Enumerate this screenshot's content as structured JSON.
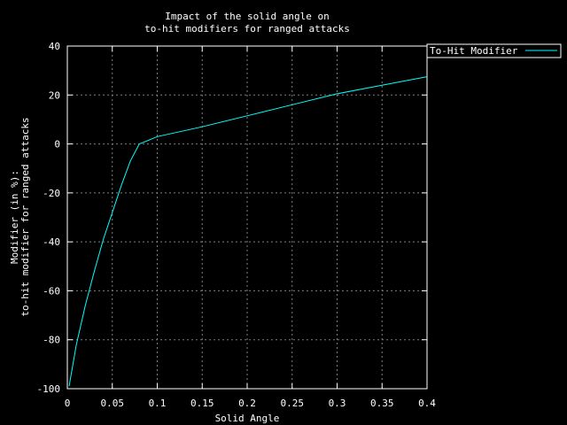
{
  "chart_data": {
    "type": "line",
    "title_lines": [
      "Impact of the solid angle on",
      "to-hit modifiers for ranged attacks"
    ],
    "xlabel": "Solid Angle",
    "ylabel_lines": [
      "Modifier (in %):",
      "to-hit modifier for ranged attacks"
    ],
    "xlim": [
      0,
      0.4
    ],
    "ylim": [
      -100,
      40
    ],
    "x_ticks": [
      0,
      0.05,
      0.1,
      0.15,
      0.2,
      0.25,
      0.3,
      0.35,
      0.4
    ],
    "x_tick_labels": [
      "0",
      "0.05",
      "0.1",
      "0.15",
      "0.2",
      "0.25",
      "0.3",
      "0.35",
      "0.4"
    ],
    "y_ticks": [
      -100,
      -80,
      -60,
      -40,
      -20,
      0,
      20,
      40
    ],
    "y_tick_labels": [
      "-100",
      "-80",
      "-60",
      "-40",
      "-20",
      "0",
      "20",
      "40"
    ],
    "grid": true,
    "legend_position": "top-right",
    "series": [
      {
        "name": "To-Hit Modifier",
        "color": "#00ffff",
        "x": [
          0.002,
          0.01,
          0.02,
          0.03,
          0.04,
          0.05,
          0.06,
          0.07,
          0.08,
          0.1,
          0.15,
          0.2,
          0.25,
          0.3,
          0.35,
          0.4
        ],
        "y": [
          -99,
          -82,
          -66,
          -52,
          -39,
          -28,
          -17,
          -7,
          0,
          3,
          7,
          11.5,
          16,
          20.5,
          24,
          27.5
        ]
      }
    ]
  }
}
